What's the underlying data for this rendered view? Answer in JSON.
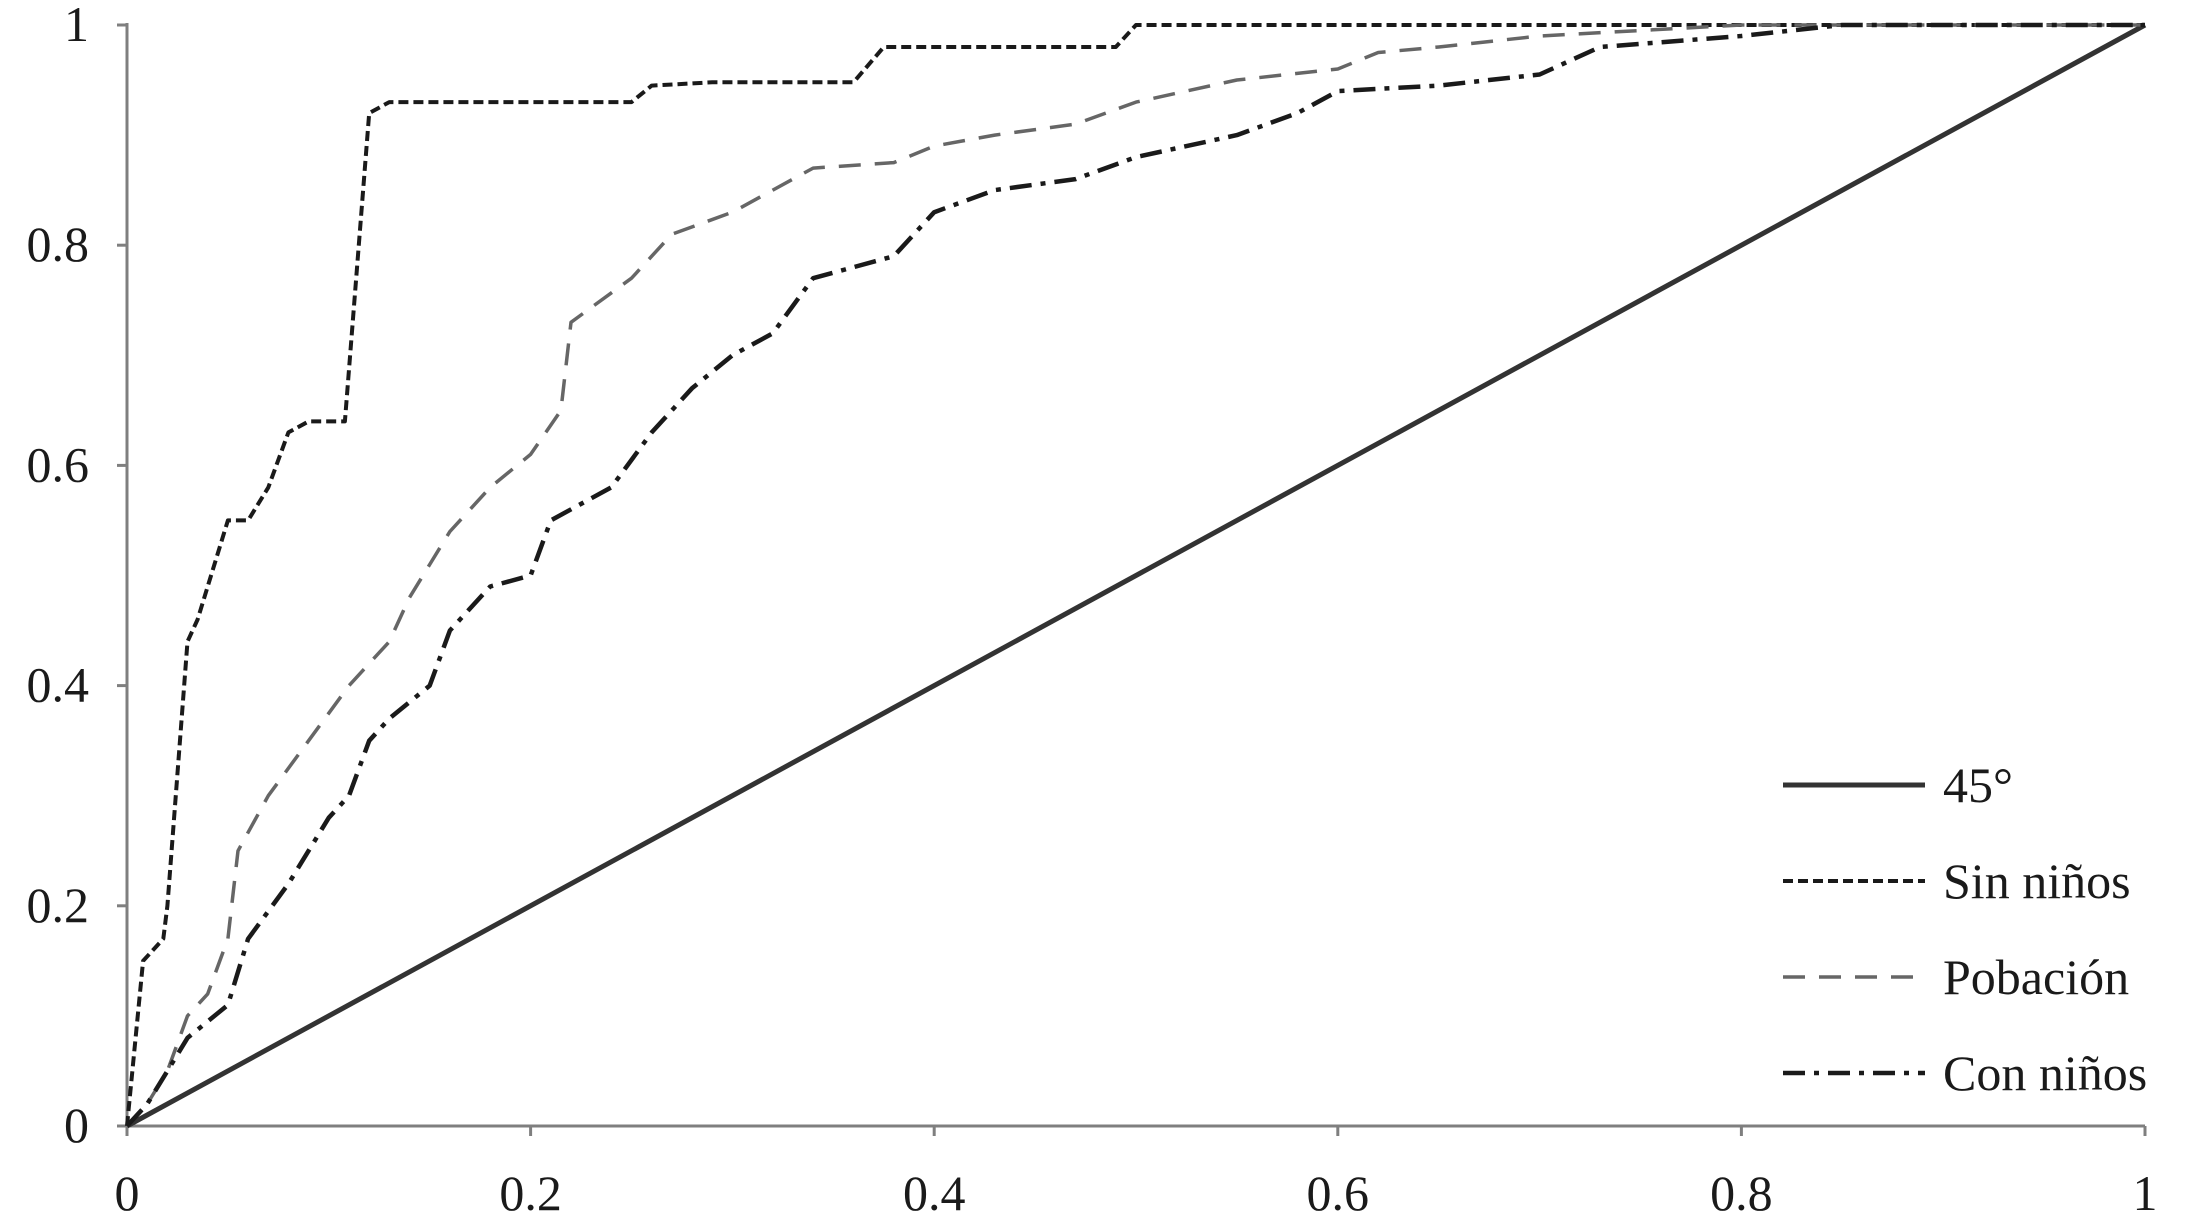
{
  "chart_data": {
    "type": "line",
    "title": "",
    "xlabel": "",
    "ylabel": "",
    "xlim": [
      0,
      1
    ],
    "ylim": [
      0,
      1
    ],
    "grid": false,
    "legend_position": "bottom-right",
    "x_ticks": [
      "0",
      "0.2",
      "0.4",
      "0.6",
      "0.8",
      "1"
    ],
    "y_ticks": [
      "0",
      "0.2",
      "0.4",
      "0.6",
      "0.8",
      "1"
    ],
    "colors": {
      "axis": "#7f7f7f",
      "line": "#333333",
      "line_light": "#666666"
    },
    "series": [
      {
        "name": "45°",
        "style": "solid",
        "points": [
          [
            0,
            0
          ],
          [
            1,
            1
          ]
        ]
      },
      {
        "name": "Sin niños",
        "style": "short-dash",
        "points": [
          [
            0,
            0
          ],
          [
            0.008,
            0.15
          ],
          [
            0.018,
            0.17
          ],
          [
            0.02,
            0.2
          ],
          [
            0.03,
            0.44
          ],
          [
            0.035,
            0.46
          ],
          [
            0.05,
            0.55
          ],
          [
            0.06,
            0.55
          ],
          [
            0.07,
            0.58
          ],
          [
            0.08,
            0.63
          ],
          [
            0.09,
            0.64
          ],
          [
            0.108,
            0.64
          ],
          [
            0.12,
            0.92
          ],
          [
            0.13,
            0.93
          ],
          [
            0.25,
            0.93
          ],
          [
            0.26,
            0.945
          ],
          [
            0.29,
            0.948
          ],
          [
            0.36,
            0.948
          ],
          [
            0.375,
            0.98
          ],
          [
            0.49,
            0.98
          ],
          [
            0.5,
            1
          ],
          [
            1,
            1
          ]
        ]
      },
      {
        "name": "Pobación",
        "style": "long-dash",
        "points": [
          [
            0,
            0
          ],
          [
            0.01,
            0.02
          ],
          [
            0.02,
            0.05
          ],
          [
            0.03,
            0.1
          ],
          [
            0.04,
            0.12
          ],
          [
            0.05,
            0.17
          ],
          [
            0.055,
            0.25
          ],
          [
            0.07,
            0.3
          ],
          [
            0.09,
            0.35
          ],
          [
            0.11,
            0.4
          ],
          [
            0.13,
            0.44
          ],
          [
            0.14,
            0.48
          ],
          [
            0.15,
            0.51
          ],
          [
            0.16,
            0.54
          ],
          [
            0.18,
            0.58
          ],
          [
            0.2,
            0.61
          ],
          [
            0.215,
            0.65
          ],
          [
            0.22,
            0.73
          ],
          [
            0.25,
            0.77
          ],
          [
            0.27,
            0.81
          ],
          [
            0.3,
            0.83
          ],
          [
            0.32,
            0.85
          ],
          [
            0.34,
            0.87
          ],
          [
            0.38,
            0.875
          ],
          [
            0.4,
            0.89
          ],
          [
            0.43,
            0.9
          ],
          [
            0.47,
            0.91
          ],
          [
            0.5,
            0.93
          ],
          [
            0.55,
            0.95
          ],
          [
            0.6,
            0.96
          ],
          [
            0.62,
            0.975
          ],
          [
            0.65,
            0.98
          ],
          [
            0.7,
            0.99
          ],
          [
            0.8,
            1
          ],
          [
            1,
            1
          ]
        ]
      },
      {
        "name": "Con niños",
        "style": "dash-dot",
        "points": [
          [
            0,
            0
          ],
          [
            0.01,
            0.02
          ],
          [
            0.02,
            0.05
          ],
          [
            0.03,
            0.08
          ],
          [
            0.05,
            0.11
          ],
          [
            0.06,
            0.17
          ],
          [
            0.08,
            0.22
          ],
          [
            0.1,
            0.28
          ],
          [
            0.11,
            0.3
          ],
          [
            0.12,
            0.35
          ],
          [
            0.13,
            0.37
          ],
          [
            0.15,
            0.4
          ],
          [
            0.16,
            0.45
          ],
          [
            0.18,
            0.49
          ],
          [
            0.2,
            0.5
          ],
          [
            0.21,
            0.55
          ],
          [
            0.24,
            0.58
          ],
          [
            0.26,
            0.63
          ],
          [
            0.28,
            0.67
          ],
          [
            0.3,
            0.7
          ],
          [
            0.32,
            0.72
          ],
          [
            0.34,
            0.77
          ],
          [
            0.36,
            0.78
          ],
          [
            0.38,
            0.79
          ],
          [
            0.4,
            0.83
          ],
          [
            0.43,
            0.85
          ],
          [
            0.47,
            0.86
          ],
          [
            0.5,
            0.88
          ],
          [
            0.55,
            0.9
          ],
          [
            0.58,
            0.92
          ],
          [
            0.6,
            0.94
          ],
          [
            0.65,
            0.945
          ],
          [
            0.7,
            0.955
          ],
          [
            0.73,
            0.98
          ],
          [
            0.8,
            0.99
          ],
          [
            0.85,
            1
          ],
          [
            1,
            1
          ]
        ]
      }
    ]
  }
}
